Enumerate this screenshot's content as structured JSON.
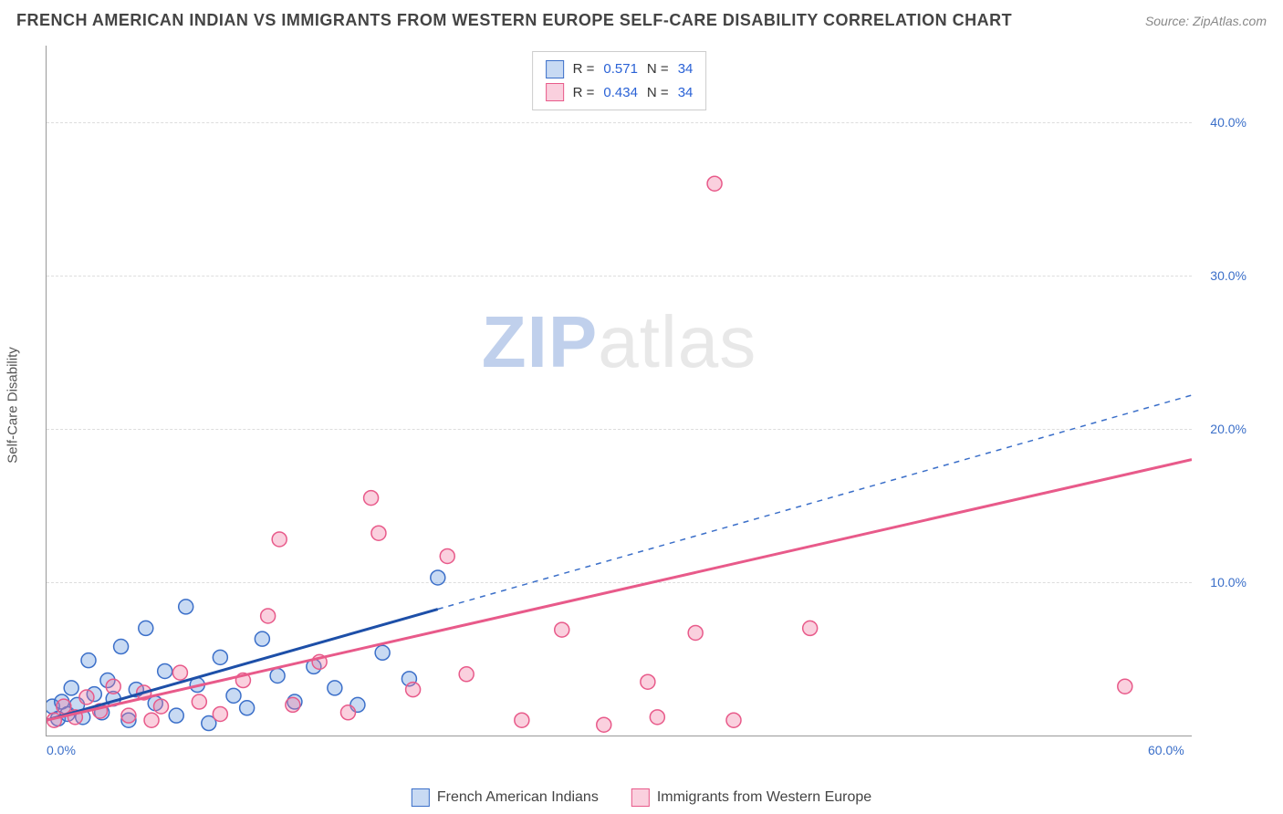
{
  "title": "FRENCH AMERICAN INDIAN VS IMMIGRANTS FROM WESTERN EUROPE SELF-CARE DISABILITY CORRELATION CHART",
  "source": "Source: ZipAtlas.com",
  "ylabel": "Self-Care Disability",
  "watermark_bold": "ZIP",
  "watermark_rest": "atlas",
  "chart": {
    "type": "scatter",
    "xlim": [
      0,
      60
    ],
    "ylim": [
      0,
      45
    ],
    "yticks": [
      10,
      20,
      30,
      40
    ],
    "ytick_labels": [
      "10.0%",
      "20.0%",
      "30.0%",
      "40.0%"
    ],
    "xticks_at": [
      0,
      60
    ],
    "xtick_labels": [
      "0.0%",
      "60.0%"
    ],
    "xtick_minors": [
      10,
      20,
      30,
      40,
      50
    ],
    "grid_color": "#dddddd",
    "background_color": "#ffffff",
    "marker_radius": 8,
    "series": [
      {
        "id": "blue",
        "label": "French American Indians",
        "color": "#3b6fc9",
        "fill": "#6096dc",
        "r_value": "0.571",
        "n_value": "34",
        "trend": {
          "x1": 0,
          "y1": 1.0,
          "x2": 60,
          "y2": 22.2,
          "solid_until_x": 20.5
        },
        "points": [
          [
            0.3,
            1.9
          ],
          [
            0.6,
            1.1
          ],
          [
            0.8,
            2.2
          ],
          [
            1.1,
            1.4
          ],
          [
            1.3,
            3.1
          ],
          [
            1.6,
            2.0
          ],
          [
            1.9,
            1.2
          ],
          [
            2.2,
            4.9
          ],
          [
            2.5,
            2.7
          ],
          [
            2.9,
            1.5
          ],
          [
            3.2,
            3.6
          ],
          [
            3.5,
            2.4
          ],
          [
            3.9,
            5.8
          ],
          [
            4.3,
            1.0
          ],
          [
            4.7,
            3.0
          ],
          [
            5.2,
            7.0
          ],
          [
            5.7,
            2.1
          ],
          [
            6.2,
            4.2
          ],
          [
            6.8,
            1.3
          ],
          [
            7.3,
            8.4
          ],
          [
            7.9,
            3.3
          ],
          [
            8.5,
            0.8
          ],
          [
            9.1,
            5.1
          ],
          [
            9.8,
            2.6
          ],
          [
            10.5,
            1.8
          ],
          [
            11.3,
            6.3
          ],
          [
            12.1,
            3.9
          ],
          [
            13.0,
            2.2
          ],
          [
            14.0,
            4.5
          ],
          [
            15.1,
            3.1
          ],
          [
            16.3,
            2.0
          ],
          [
            17.6,
            5.4
          ],
          [
            19.0,
            3.7
          ],
          [
            20.5,
            10.3
          ]
        ]
      },
      {
        "id": "pink",
        "label": "Immigrants from Western Europe",
        "color": "#e85a8a",
        "fill": "#f078a0",
        "r_value": "0.434",
        "n_value": "34",
        "trend": {
          "x1": 0,
          "y1": 1.0,
          "x2": 60,
          "y2": 18.0,
          "solid_until_x": 60
        },
        "points": [
          [
            0.4,
            1.0
          ],
          [
            0.9,
            1.9
          ],
          [
            1.5,
            1.2
          ],
          [
            2.1,
            2.5
          ],
          [
            2.8,
            1.6
          ],
          [
            3.5,
            3.2
          ],
          [
            4.3,
            1.3
          ],
          [
            5.1,
            2.8
          ],
          [
            6.0,
            1.9
          ],
          [
            7.0,
            4.1
          ],
          [
            8.0,
            2.2
          ],
          [
            9.1,
            1.4
          ],
          [
            10.3,
            3.6
          ],
          [
            11.6,
            7.8
          ],
          [
            12.9,
            2.0
          ],
          [
            14.3,
            4.8
          ],
          [
            15.8,
            1.5
          ],
          [
            17.0,
            15.5
          ],
          [
            17.4,
            13.2
          ],
          [
            19.2,
            3.0
          ],
          [
            21.0,
            11.7
          ],
          [
            22.0,
            4.0
          ],
          [
            24.9,
            1.0
          ],
          [
            27.0,
            6.9
          ],
          [
            29.2,
            0.7
          ],
          [
            31.5,
            3.5
          ],
          [
            32.0,
            1.2
          ],
          [
            34.0,
            6.7
          ],
          [
            36.0,
            1.0
          ],
          [
            35.0,
            36.0
          ],
          [
            40.0,
            7.0
          ],
          [
            56.5,
            3.2
          ],
          [
            5.5,
            1.0
          ],
          [
            12.2,
            12.8
          ]
        ]
      }
    ]
  },
  "legend_top": {
    "r_prefix": "R  =",
    "n_prefix": "N  ="
  },
  "legend_bottom": {
    "item1": "French American Indians",
    "item2": "Immigrants from Western Europe"
  }
}
